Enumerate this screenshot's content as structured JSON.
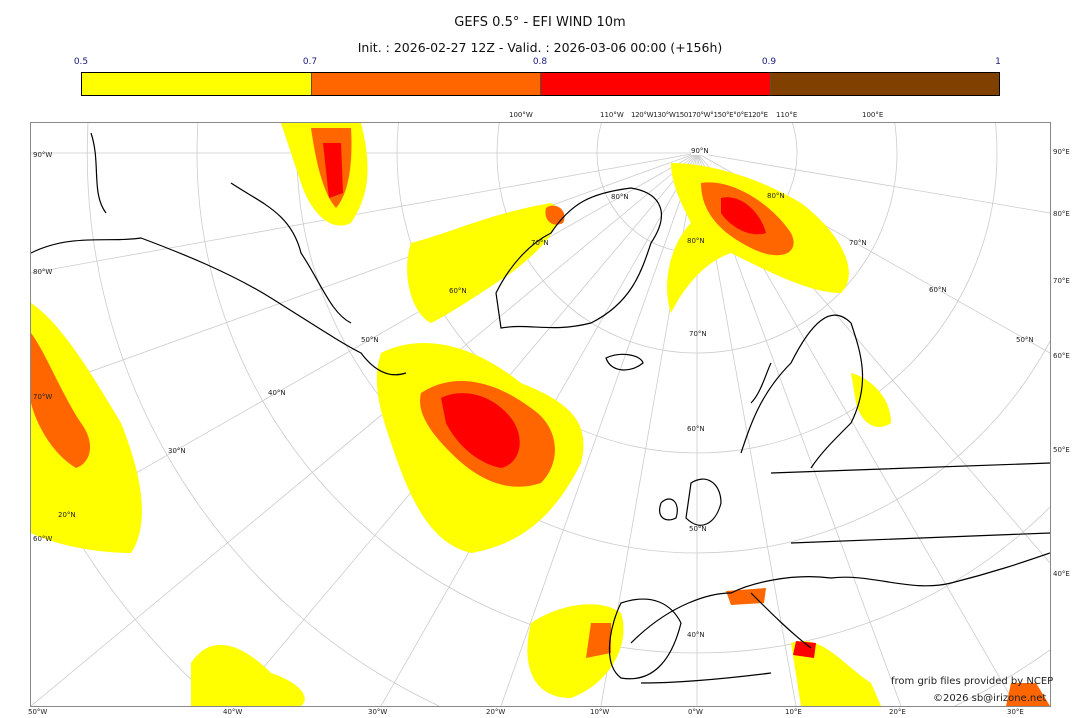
{
  "title": "GEFS 0.5° - EFI WIND 10m",
  "subtitle": "Init. : 2026-02-27 12Z - Valid. : 2026-03-06 00:00 (+156h)",
  "colorbar": {
    "ticks": [
      "0.5",
      "0.7",
      "0.8",
      "0.9",
      "1"
    ],
    "colors": [
      "#ffff00",
      "#ff6600",
      "#ff0000",
      "#804000"
    ]
  },
  "map": {
    "left_labels": [
      "90°W",
      "80°W",
      "70°W",
      "60°W"
    ],
    "right_labels": [
      "90°E",
      "80°E",
      "70°E",
      "60°E",
      "50°E",
      "40°E"
    ],
    "bottom_labels": [
      "50°W",
      "40°W",
      "30°W",
      "20°W",
      "10°W",
      "0°W",
      "10°E",
      "20°E",
      "30°E"
    ],
    "top_labels": [
      "100°W",
      "110°W",
      "120°W130°W150170°W°150°E°0°E120°E",
      "110°E",
      "100°E"
    ],
    "lat_labels": [
      "90°N",
      "80°N",
      "70°N",
      "60°N",
      "50°N",
      "40°N",
      "30°N",
      "20°N",
      "80°N",
      "70°N",
      "60°N",
      "50°N",
      "80°N",
      "70°N",
      "60°N",
      "50°N",
      "40°N"
    ]
  },
  "credits": {
    "line1": "from grib files provided by NCEP",
    "line2": "©2026 sb@irizone.net"
  }
}
